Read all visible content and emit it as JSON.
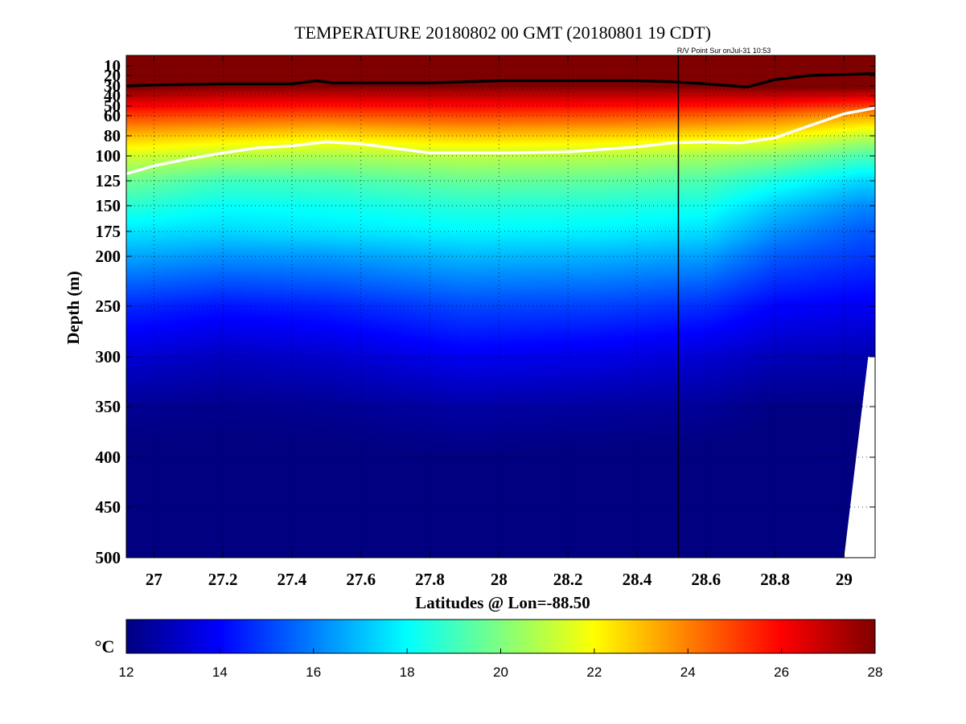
{
  "chart_data": {
    "type": "heatmap",
    "title": "TEMPERATURE 20180802 00 GMT (20180801 19 CDT)",
    "annotation": "R/V Point Sur onJul-31 10:53",
    "xlabel": "Latitudes @ Lon=-88.50",
    "ylabel": "Depth (m)",
    "xlim": [
      26.92,
      29.09
    ],
    "ylim": [
      500,
      0
    ],
    "xticks": [
      27,
      27.2,
      27.4,
      27.6,
      27.8,
      28,
      28.2,
      28.4,
      28.6,
      28.8,
      29
    ],
    "xtick_labels": [
      "27",
      "27.2",
      "27.4",
      "27.6",
      "27.8",
      "28",
      "28.2",
      "28.4",
      "28.6",
      "28.8",
      "29"
    ],
    "yticks": [
      10,
      20,
      30,
      40,
      50,
      60,
      80,
      100,
      125,
      150,
      175,
      200,
      250,
      300,
      350,
      400,
      450,
      500
    ],
    "ytick_labels": [
      "10",
      "20",
      "30",
      "40",
      "50",
      "60",
      "80",
      "100",
      "125",
      "150",
      "175",
      "200",
      "250",
      "300",
      "350",
      "400",
      "450",
      "500"
    ],
    "grid": true,
    "ship_position_lat": 28.52,
    "colorbar": {
      "label": "°C",
      "range": [
        12,
        28
      ],
      "ticks": [
        12,
        14,
        16,
        18,
        20,
        22,
        24,
        26,
        28
      ],
      "tick_labels": [
        "12",
        "14",
        "16",
        "18",
        "20",
        "22",
        "24",
        "26",
        "28"
      ],
      "colormap": "jet"
    },
    "isotherms": [
      {
        "color": "#000000",
        "x": [
          26.92,
          27.0,
          27.2,
          27.4,
          27.47,
          27.52,
          27.6,
          27.8,
          28.0,
          28.2,
          28.4,
          28.5,
          28.6,
          28.72,
          28.8,
          28.9,
          29.0,
          29.09
        ],
        "y": [
          30,
          29,
          28,
          28,
          25,
          27,
          27,
          27,
          25,
          25,
          25,
          26,
          28,
          31,
          24,
          20,
          19,
          18
        ]
      },
      {
        "color": "#ffffff",
        "x": [
          26.92,
          27.0,
          27.1,
          27.2,
          27.3,
          27.4,
          27.5,
          27.6,
          27.8,
          28.0,
          28.2,
          28.4,
          28.5,
          28.6,
          28.7,
          28.8,
          28.9,
          29.0,
          29.09
        ],
        "y": [
          118,
          110,
          103,
          97,
          92,
          90,
          86,
          88,
          97,
          97,
          96,
          91,
          87,
          86,
          87,
          82,
          70,
          58,
          52
        ]
      }
    ],
    "profiles": [
      {
        "lat": 26.95,
        "depth": [
          0,
          30,
          60,
          80,
          100,
          125,
          150,
          175,
          200,
          250,
          300,
          350,
          400,
          500
        ],
        "temp": [
          29.5,
          28.2,
          25.0,
          23.0,
          21.3,
          19.7,
          18.6,
          17.6,
          16.6,
          14.6,
          13.3,
          12.3,
          11.9,
          11.6
        ]
      },
      {
        "lat": 27.2,
        "depth": [
          0,
          30,
          60,
          80,
          100,
          125,
          150,
          175,
          200,
          250,
          300,
          350,
          400,
          500
        ],
        "temp": [
          29.5,
          28.0,
          24.8,
          22.7,
          20.9,
          19.0,
          18.1,
          17.4,
          16.3,
          14.3,
          13.0,
          12.2,
          11.9,
          11.6
        ]
      },
      {
        "lat": 27.5,
        "depth": [
          0,
          30,
          60,
          80,
          100,
          125,
          150,
          175,
          200,
          250,
          300,
          350,
          400,
          500
        ],
        "temp": [
          29.5,
          28.0,
          24.6,
          22.4,
          20.7,
          19.1,
          18.2,
          17.6,
          16.4,
          14.5,
          13.2,
          12.3,
          11.9,
          11.6
        ]
      },
      {
        "lat": 27.9,
        "depth": [
          0,
          30,
          60,
          80,
          100,
          125,
          150,
          175,
          200,
          250,
          300,
          350,
          400,
          500
        ],
        "temp": [
          29.5,
          28.0,
          24.9,
          22.9,
          21.0,
          19.6,
          18.6,
          17.9,
          16.9,
          15.1,
          13.8,
          12.6,
          12.0,
          11.6
        ]
      },
      {
        "lat": 28.3,
        "depth": [
          0,
          30,
          60,
          80,
          100,
          125,
          150,
          175,
          200,
          250,
          300,
          350,
          400,
          500
        ],
        "temp": [
          29.5,
          28.0,
          24.8,
          22.7,
          20.9,
          19.5,
          18.5,
          17.8,
          16.8,
          15.0,
          13.6,
          12.5,
          11.9,
          11.6
        ]
      },
      {
        "lat": 28.6,
        "depth": [
          0,
          30,
          60,
          80,
          100,
          125,
          150,
          175,
          200,
          250,
          300,
          350,
          400,
          500
        ],
        "temp": [
          29.5,
          28.1,
          24.5,
          22.4,
          20.6,
          19.2,
          18.3,
          17.5,
          16.5,
          14.7,
          13.3,
          12.4,
          11.9,
          11.6
        ]
      },
      {
        "lat": 28.8,
        "depth": [
          0,
          30,
          60,
          80,
          100,
          125,
          150,
          175,
          200,
          250,
          300,
          350,
          400,
          500
        ],
        "temp": [
          29.5,
          28.3,
          24.2,
          22.2,
          20.2,
          18.4,
          17.2,
          16.3,
          15.4,
          14.0,
          12.9,
          12.1,
          11.8,
          11.6
        ]
      },
      {
        "lat": 29.05,
        "depth": [
          0,
          30,
          60,
          80,
          100,
          125,
          150,
          175,
          200,
          250,
          300,
          350,
          400,
          500
        ],
        "temp": [
          29.5,
          28.3,
          23.4,
          21.1,
          19.2,
          17.4,
          16.2,
          15.4,
          14.9,
          13.8,
          12.8,
          12.1,
          11.8,
          11.6
        ]
      }
    ],
    "no_data_region": {
      "x": [
        29.0,
        29.07,
        29.09,
        29.09
      ],
      "y": [
        500,
        300,
        300,
        500
      ]
    }
  }
}
